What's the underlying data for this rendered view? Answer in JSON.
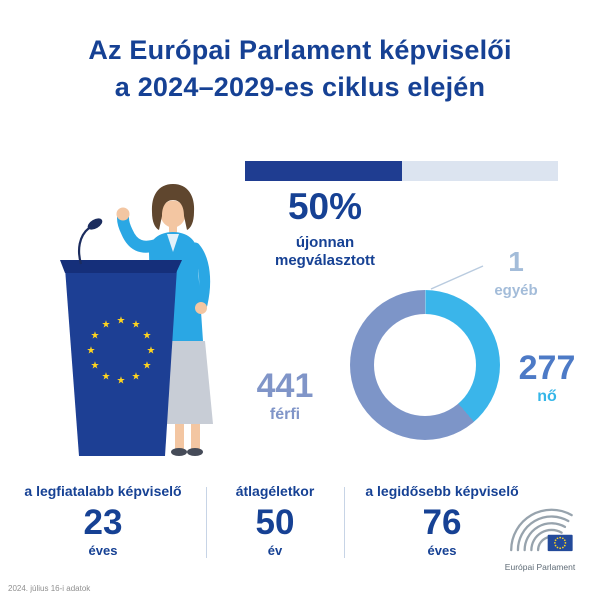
{
  "title": {
    "line1": "Az Európai Parlament képviselői",
    "line2": "a 2024–2029-es ciklus elején"
  },
  "newly_elected": {
    "percent_label": "50%",
    "caption_line1": "újonnan",
    "caption_line2": "megválasztott"
  },
  "chart_data": [
    {
      "type": "bar",
      "orientation": "horizontal",
      "categories": [
        "újonnan megválasztott"
      ],
      "values": [
        50
      ],
      "unit": "%",
      "xlim": [
        0,
        100
      ],
      "colors": {
        "fill": "#1f3d91",
        "track": "#dce4f0"
      }
    },
    {
      "type": "pie",
      "style": "donut",
      "start_angle_deg": 0,
      "direction": "clockwise",
      "total": 719,
      "segments": [
        {
          "label": "egyéb",
          "value": 1,
          "color": "#c9d7e6"
        },
        {
          "label": "nő",
          "value": 277,
          "color": "#3ab5ea"
        },
        {
          "label": "férfi",
          "value": 441,
          "color": "#7d95c8"
        }
      ]
    }
  ],
  "stats": [
    {
      "label": "a legfiatalabb képviselő",
      "value": "23",
      "unit": "éves"
    },
    {
      "label": "átlagéletkor",
      "value": "50",
      "unit": "év"
    },
    {
      "label": "a legidősebb képviselő",
      "value": "76",
      "unit": "éves"
    }
  ],
  "footer": {
    "source_note": "2024. július 16-i adatok",
    "logo_caption": "Európai Parlament"
  },
  "colors": {
    "primary_blue": "#164194",
    "bar_fill": "#1f3d91",
    "bar_track": "#dce4f0",
    "men": "#7d95c8",
    "women_slice": "#3ab5ea",
    "women_number": "#4d7ac6",
    "other": "#c9d7e6",
    "annotation_text": "#a3bcd9",
    "callout_line": "#b9cbdf",
    "eu_yellow": "#ffd41f",
    "podium_blue": "#1d3f94"
  }
}
